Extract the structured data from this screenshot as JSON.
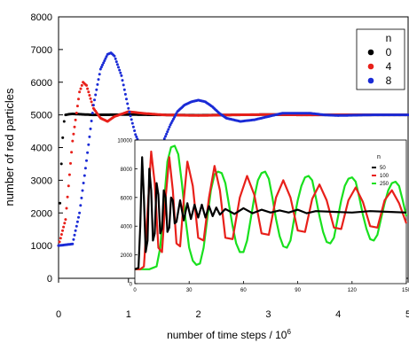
{
  "chart_data": [
    {
      "type": "scatter",
      "xlabel": "number of time steps / 10",
      "xlabel_superscript": "6",
      "ylabel": "number of red particles",
      "xlim": [
        0,
        5
      ],
      "ylim": [
        0,
        8000
      ],
      "x_ticks": [
        0,
        1,
        2,
        3,
        4,
        5
      ],
      "y_ticks": [
        0,
        1000,
        2000,
        3000,
        4000,
        5000,
        6000,
        7000,
        8000
      ],
      "grid": false,
      "legend": {
        "placement": "top-right",
        "title": "n"
      },
      "series": [
        {
          "name": "0",
          "color": "#000000",
          "x": [
            0.0,
            0.02,
            0.04,
            0.06,
            0.08,
            0.1,
            0.15,
            0.2,
            0.3,
            0.5,
            1.0,
            1.5,
            2.0,
            2.5,
            3.0,
            3.5,
            4.0,
            4.5,
            5.0
          ],
          "y": [
            1000,
            2300,
            3500,
            4300,
            4800,
            5000,
            5020,
            5030,
            5020,
            5000,
            5010,
            5000,
            4990,
            5000,
            5010,
            5000,
            5000,
            5000,
            5000
          ]
        },
        {
          "name": "4",
          "color": "#e8201a",
          "x": [
            0.0,
            0.1,
            0.2,
            0.3,
            0.35,
            0.4,
            0.5,
            0.6,
            0.7,
            0.8,
            1.0,
            1.2,
            1.5,
            2.0,
            2.5,
            3.0,
            3.5,
            4.0,
            4.5,
            5.0
          ],
          "y": [
            1000,
            1800,
            4200,
            5700,
            6000,
            5900,
            5200,
            4900,
            4800,
            4950,
            5100,
            5050,
            5000,
            4980,
            5000,
            5010,
            5000,
            5000,
            5000,
            5000
          ]
        },
        {
          "name": "8",
          "color": "#1a2bd6",
          "x": [
            0.0,
            0.2,
            0.3,
            0.4,
            0.5,
            0.6,
            0.7,
            0.75,
            0.8,
            0.9,
            1.0,
            1.1,
            1.2,
            1.3,
            1.4,
            1.5,
            1.6,
            1.7,
            1.8,
            1.9,
            2.0,
            2.1,
            2.2,
            2.3,
            2.4,
            2.6,
            2.8,
            3.0,
            3.2,
            3.4,
            3.6,
            3.8,
            4.0,
            4.5,
            5.0
          ],
          "y": [
            1000,
            1050,
            2000,
            3600,
            5300,
            6400,
            6850,
            6900,
            6800,
            6200,
            5200,
            4400,
            3900,
            3750,
            3800,
            4200,
            4700,
            5100,
            5300,
            5400,
            5450,
            5400,
            5250,
            5050,
            4900,
            4800,
            4850,
            4950,
            5050,
            5050,
            5050,
            5000,
            4980,
            5000,
            5000
          ]
        }
      ]
    },
    {
      "type": "line",
      "xlim": [
        0,
        150
      ],
      "ylim": [
        0,
        10000
      ],
      "x_ticks": [
        0,
        30,
        60,
        90,
        120,
        150
      ],
      "y_ticks": [
        0,
        2000,
        4000,
        6000,
        8000,
        10000
      ],
      "grid": false,
      "legend": {
        "placement": "top-right",
        "title": "n"
      },
      "series": [
        {
          "name": "50",
          "color": "#000000",
          "x": [
            0,
            2,
            3,
            4,
            5,
            6,
            7,
            8,
            9,
            10,
            11,
            12,
            13,
            14,
            15,
            16,
            17,
            18,
            19,
            20,
            21,
            22,
            23,
            25,
            27,
            29,
            31,
            33,
            35,
            37,
            39,
            41,
            43,
            45,
            47,
            50,
            55,
            60,
            65,
            70,
            75,
            80,
            85,
            90,
            95,
            100,
            110,
            120,
            130,
            140,
            150
          ],
          "y": [
            1000,
            1100,
            4000,
            8800,
            6000,
            2200,
            3000,
            8000,
            6500,
            3000,
            3500,
            7000,
            6200,
            3500,
            3800,
            6500,
            6000,
            3600,
            3900,
            6000,
            5800,
            4200,
            4300,
            5800,
            4400,
            5600,
            4500,
            5500,
            4600,
            5500,
            4600,
            5400,
            4700,
            5300,
            4800,
            5200,
            4850,
            5250,
            4900,
            5150,
            4950,
            5100,
            4950,
            5150,
            4900,
            5050,
            5000,
            4950,
            5050,
            5000,
            4950
          ]
        },
        {
          "name": "100",
          "color": "#e8201a",
          "x": [
            0,
            3,
            5,
            7,
            9,
            11,
            13,
            15,
            17,
            19,
            21,
            23,
            25,
            27,
            29,
            32,
            35,
            38,
            41,
            44,
            47,
            50,
            54,
            58,
            62,
            66,
            70,
            74,
            78,
            82,
            86,
            90,
            94,
            98,
            102,
            106,
            110,
            114,
            118,
            122,
            126,
            130,
            134,
            138,
            142,
            146,
            150
          ],
          "y": [
            1000,
            1000,
            1200,
            5000,
            9200,
            7000,
            2500,
            2200,
            6000,
            8800,
            6500,
            2800,
            2600,
            5800,
            8500,
            6800,
            3200,
            3000,
            6000,
            8200,
            6500,
            3200,
            3100,
            6000,
            7500,
            6200,
            3500,
            3400,
            6000,
            7200,
            6000,
            3700,
            3600,
            5900,
            6900,
            5800,
            3900,
            3800,
            5800,
            6700,
            5700,
            4000,
            3900,
            5800,
            6500,
            5600,
            4200
          ]
        },
        {
          "name": "250",
          "color": "#19e01e",
          "x": [
            0,
            5,
            8,
            10,
            12,
            14,
            16,
            18,
            20,
            22,
            24,
            26,
            28,
            30,
            32,
            34,
            36,
            38,
            40,
            42,
            44,
            46,
            48,
            50,
            52,
            54,
            56,
            58,
            60,
            62,
            64,
            66,
            68,
            70,
            72,
            74,
            76,
            78,
            80,
            82,
            84,
            86,
            88,
            90,
            92,
            94,
            96,
            98,
            100,
            102,
            104,
            106,
            108,
            110,
            112,
            114,
            116,
            118,
            120,
            122,
            124,
            126,
            128,
            130,
            132,
            134,
            136,
            138,
            140,
            142,
            144,
            146,
            148,
            150
          ],
          "y": [
            1000,
            1000,
            1000,
            1100,
            1200,
            2500,
            5500,
            8500,
            9500,
            9600,
            9000,
            7000,
            4500,
            2500,
            1600,
            1300,
            1400,
            2500,
            4500,
            6500,
            7600,
            7800,
            7700,
            7000,
            5500,
            4000,
            2800,
            2200,
            2200,
            3000,
            4500,
            6000,
            7200,
            7700,
            7800,
            7300,
            6000,
            4500,
            3300,
            2600,
            2500,
            3000,
            4500,
            5800,
            6800,
            7400,
            7500,
            7200,
            6000,
            4700,
            3600,
            2900,
            2800,
            3200,
            4500,
            5800,
            6800,
            7300,
            7400,
            7100,
            6000,
            4800,
            3800,
            3100,
            3000,
            3400,
            4500,
            5600,
            6500,
            7000,
            7100,
            6800,
            5800,
            4700
          ]
        }
      ]
    }
  ]
}
